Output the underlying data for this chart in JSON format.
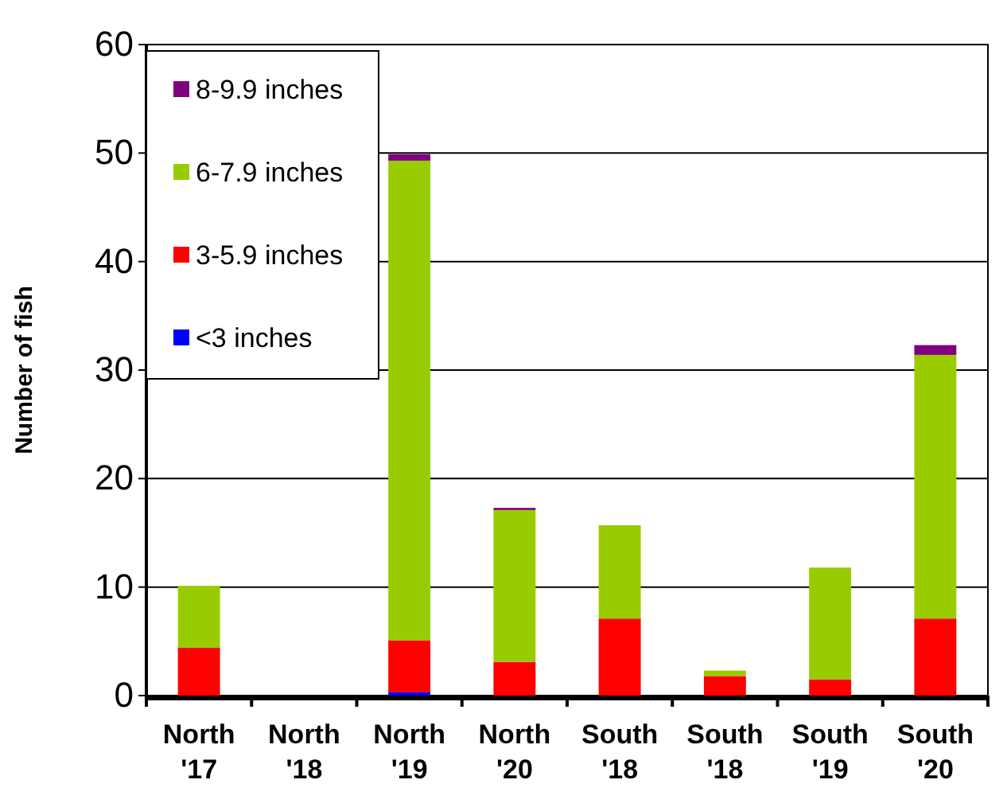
{
  "chart_data": {
    "type": "bar",
    "stacked": true,
    "ylabel": "Number of fish",
    "categories": [
      "North\n'17",
      "North\n'18",
      "North\n'19",
      "North\n'20",
      "South\n'18",
      "South\n'18",
      "South\n'19",
      "South\n'20"
    ],
    "series": [
      {
        "name": "<3 inches",
        "color": "#0000ff",
        "values": [
          0,
          0,
          0.3,
          0,
          0,
          0,
          0,
          0
        ]
      },
      {
        "name": "3-5.9 inches",
        "color": "#ff0000",
        "values": [
          4.4,
          0,
          4.8,
          3.1,
          7.1,
          1.8,
          1.5,
          7.1
        ]
      },
      {
        "name": "6-7.9 inches",
        "color": "#99cc00",
        "values": [
          5.7,
          0,
          44.2,
          14.0,
          8.6,
          0.5,
          10.3,
          24.3
        ]
      },
      {
        "name": "8-9.9 inches",
        "color": "#800080",
        "values": [
          0,
          0,
          0.6,
          0.2,
          0,
          0,
          0,
          0.9
        ]
      }
    ],
    "ylim": [
      0,
      60
    ],
    "yticks": [
      0,
      10,
      20,
      30,
      40,
      50,
      60
    ],
    "grid": "y",
    "legend": "top left"
  }
}
